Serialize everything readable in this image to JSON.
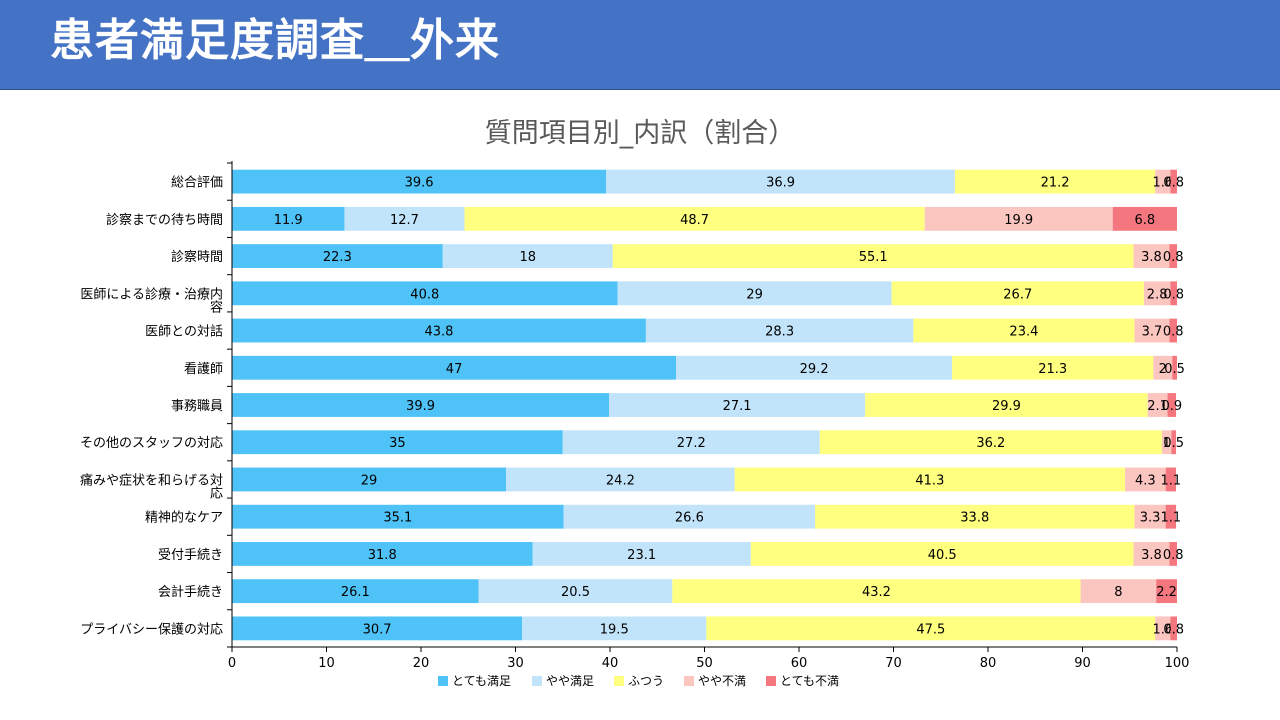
{
  "page": {
    "title": "患者満足度調査＿外来"
  },
  "chart_data": {
    "type": "bar",
    "orientation": "horizontal",
    "stacked": true,
    "title": "質問項目別_内訳（割合）",
    "xlim": [
      0,
      100
    ],
    "xticks": [
      0,
      10,
      20,
      30,
      40,
      50,
      60,
      70,
      80,
      90,
      100
    ],
    "grid": false,
    "legend_position": "bottom",
    "categories": [
      "総合評価",
      "診察までの待ち時間",
      "診察時間",
      "医師による診療・治療内容",
      "医師との対話",
      "看護師",
      "事務職員",
      "その他のスタッフの対応",
      "痛みや症状を和らげる対応",
      "精神的なケア",
      "受付手続き",
      "会計手続き",
      "プライバシー保護の対応"
    ],
    "category_lines": [
      [
        "総合評価"
      ],
      [
        "診察までの待ち時間"
      ],
      [
        "診察時間"
      ],
      [
        "医師による診療・治療内",
        "容"
      ],
      [
        "医師との対話"
      ],
      [
        "看護師"
      ],
      [
        "事務職員"
      ],
      [
        "その他のスタッフの対応"
      ],
      [
        "痛みや症状を和らげる対",
        "応"
      ],
      [
        "精神的なケア"
      ],
      [
        "受付手続き"
      ],
      [
        "会計手続き"
      ],
      [
        "プライバシー保護の対応"
      ]
    ],
    "series": [
      {
        "name": "とても満足",
        "color": "#4fc3f7",
        "values": [
          39.6,
          11.9,
          22.3,
          40.8,
          43.8,
          47,
          39.9,
          35,
          29,
          35.1,
          31.8,
          26.1,
          30.7
        ]
      },
      {
        "name": "やや満足",
        "color": "#c1e4fb",
        "values": [
          36.9,
          12.7,
          18,
          29,
          28.3,
          29.2,
          27.1,
          27.2,
          24.2,
          26.6,
          23.1,
          20.5,
          19.5
        ]
      },
      {
        "name": "ふつう",
        "color": "#ffff80",
        "values": [
          21.2,
          48.7,
          55.1,
          26.7,
          23.4,
          21.3,
          29.9,
          36.2,
          41.3,
          33.8,
          40.5,
          43.2,
          47.5
        ]
      },
      {
        "name": "やや不満",
        "color": "#fcc6c0",
        "values": [
          1.6,
          19.9,
          3.8,
          2.8,
          3.7,
          2,
          2.1,
          1,
          4.3,
          3.3,
          3.8,
          8,
          1.6
        ]
      },
      {
        "name": "とても不満",
        "color": "#f4777f",
        "values": [
          0.8,
          6.8,
          0.8,
          0.8,
          0.8,
          0.5,
          0.9,
          0.5,
          1.1,
          1.1,
          0.8,
          2.2,
          0.8
        ]
      }
    ],
    "data_labels": [
      [
        "39.6",
        "36.9",
        "21.2",
        "1.6",
        "0.8"
      ],
      [
        "11.9",
        "12.7",
        "48.7",
        "19.9",
        "6.8"
      ],
      [
        "22.3",
        "18",
        "55.1",
        "3.8",
        "0.8"
      ],
      [
        "40.8",
        "29",
        "26.7",
        "2.8",
        "0.8"
      ],
      [
        "43.8",
        "28.3",
        "23.4",
        "3.7",
        "0.8"
      ],
      [
        "47",
        "29.2",
        "21.3",
        "2",
        "0.5"
      ],
      [
        "39.9",
        "27.1",
        "29.9",
        "2.1",
        "0.9"
      ],
      [
        "35",
        "27.2",
        "36.2",
        "1",
        "0.5"
      ],
      [
        "29",
        "24.2",
        "41.3",
        "4.3",
        "1.1"
      ],
      [
        "35.1",
        "26.6",
        "33.8",
        "3.3",
        "1.1"
      ],
      [
        "31.8",
        "23.1",
        "40.5",
        "3.8",
        "0.8"
      ],
      [
        "26.1",
        "20.5",
        "43.2",
        "8",
        "2.2"
      ],
      [
        "30.7",
        "19.5",
        "47.5",
        "1.6",
        "0.8"
      ]
    ]
  }
}
